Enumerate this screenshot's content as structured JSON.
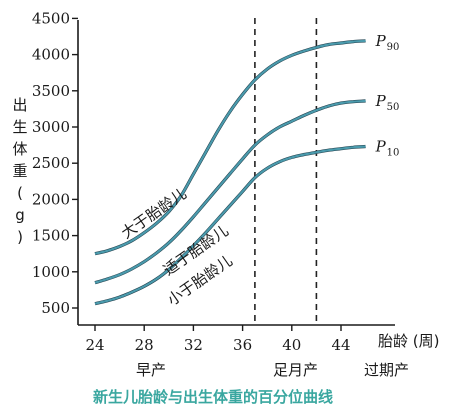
{
  "chart_data": {
    "type": "line",
    "title": "",
    "ylabel": "出生体重(g)",
    "xlabel": "胎龄 (周)",
    "xlim": [
      23.5,
      47
    ],
    "ylim": [
      350,
      4500
    ],
    "x_ticks": [
      24,
      28,
      32,
      36,
      40,
      44
    ],
    "y_ticks": [
      500,
      1000,
      1500,
      2000,
      2500,
      3000,
      3500,
      4000,
      4500
    ],
    "grid": false,
    "series": [
      {
        "name": "P90",
        "x": [
          24,
          25,
          26,
          27,
          28,
          29,
          30,
          31,
          32,
          33,
          34,
          35,
          36,
          37,
          38,
          39,
          40,
          41,
          42,
          43,
          44,
          45,
          46
        ],
        "values": [
          1250,
          1290,
          1350,
          1430,
          1540,
          1670,
          1830,
          2050,
          2350,
          2650,
          2950,
          3220,
          3450,
          3650,
          3800,
          3910,
          3990,
          4050,
          4100,
          4140,
          4160,
          4180,
          4190
        ]
      },
      {
        "name": "P50",
        "x": [
          24,
          25,
          26,
          27,
          28,
          29,
          30,
          31,
          32,
          33,
          34,
          35,
          36,
          37,
          38,
          39,
          40,
          41,
          42,
          43,
          44,
          45,
          46
        ],
        "values": [
          850,
          900,
          960,
          1040,
          1140,
          1260,
          1400,
          1570,
          1760,
          1960,
          2160,
          2360,
          2560,
          2750,
          2890,
          3000,
          3080,
          3160,
          3230,
          3290,
          3330,
          3350,
          3360
        ]
      },
      {
        "name": "P10",
        "x": [
          24,
          25,
          26,
          27,
          28,
          29,
          30,
          31,
          32,
          33,
          34,
          35,
          36,
          37,
          38,
          39,
          40,
          41,
          42,
          43,
          44,
          45,
          46
        ],
        "values": [
          560,
          600,
          650,
          720,
          800,
          900,
          1030,
          1190,
          1360,
          1540,
          1730,
          1920,
          2110,
          2300,
          2430,
          2520,
          2580,
          2620,
          2650,
          2680,
          2700,
          2720,
          2730
        ]
      }
    ],
    "dashed_lines_x": [
      37,
      42
    ],
    "series_labels": [
      {
        "series": "P90",
        "p": "P",
        "sub": "90"
      },
      {
        "series": "P50",
        "p": "P",
        "sub": "50"
      },
      {
        "series": "P10",
        "p": "P",
        "sub": "10"
      }
    ],
    "curve_annotations": [
      "大于胎龄儿",
      "适于胎龄儿",
      "小于胎龄儿"
    ],
    "period_labels": [
      "早产",
      "足月产",
      "过期产"
    ],
    "caption": "新生儿胎龄与出生体重的百分位曲线"
  }
}
